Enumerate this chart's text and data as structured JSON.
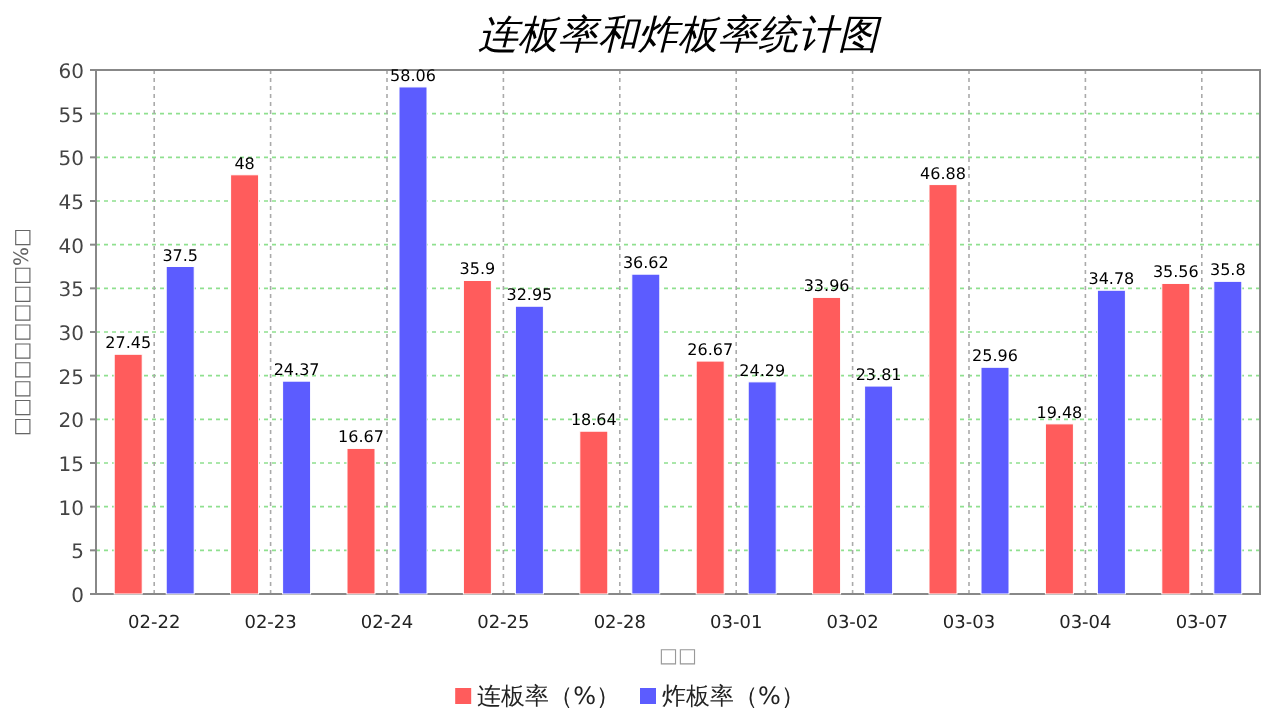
{
  "chart_data": {
    "type": "bar",
    "title": "连板率和炸板率统计图",
    "xlabel": "□□",
    "ylabel": "□□□□□□□□□%□",
    "categories": [
      "02-22",
      "02-23",
      "02-24",
      "02-25",
      "02-28",
      "03-01",
      "03-02",
      "03-03",
      "03-04",
      "03-07"
    ],
    "series": [
      {
        "name": "连板率（%）",
        "color": "#ff5c5c",
        "values": [
          27.45,
          48,
          16.67,
          35.9,
          18.64,
          26.67,
          33.96,
          46.88,
          19.48,
          35.56
        ]
      },
      {
        "name": "炸板率（%）",
        "color": "#5c5cff",
        "values": [
          37.5,
          24.37,
          58.06,
          32.95,
          36.62,
          24.29,
          23.81,
          25.96,
          34.78,
          35.8
        ]
      }
    ],
    "ylim": [
      0,
      60
    ],
    "yticks": [
      0,
      5,
      10,
      15,
      20,
      25,
      30,
      35,
      40,
      45,
      50,
      55,
      60
    ],
    "grid": true,
    "legend": "bottom",
    "data_labels": true
  }
}
